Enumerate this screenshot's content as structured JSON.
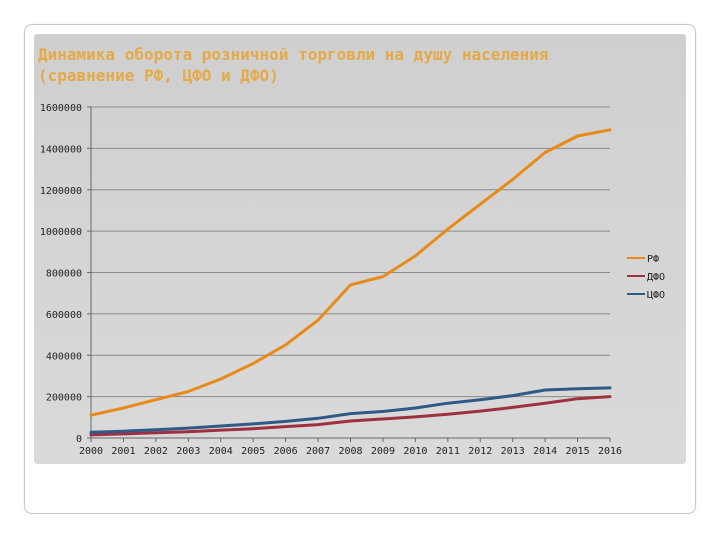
{
  "slide": {
    "title_line1": "Динамика оборота розничной торговли на душу населения",
    "title_line2": "(сравнение РФ, ЦФО и ДФО)"
  },
  "chart_data": {
    "type": "line",
    "x": [
      "2000",
      "2001",
      "2002",
      "2003",
      "2004",
      "2005",
      "2006",
      "2007",
      "2008",
      "2009",
      "2010",
      "2011",
      "2012",
      "2013",
      "2014",
      "2015",
      "2016"
    ],
    "yticks": [
      "0",
      "200000",
      "400000",
      "600000",
      "800000",
      "1000000",
      "1200000",
      "1400000",
      "1600000"
    ],
    "ylim": [
      0,
      1600000
    ],
    "grid": true,
    "legend_position": "right",
    "series": [
      {
        "name": "РФ",
        "color": "#e88a1a",
        "values": [
          110000,
          145000,
          185000,
          225000,
          285000,
          360000,
          450000,
          570000,
          740000,
          780000,
          880000,
          1010000,
          1130000,
          1250000,
          1380000,
          1460000,
          1490000
        ]
      },
      {
        "name": "ДФО",
        "color": "#9e3040",
        "values": [
          15000,
          20000,
          25000,
          30000,
          38000,
          45000,
          55000,
          65000,
          82000,
          92000,
          102000,
          115000,
          130000,
          148000,
          168000,
          190000,
          200000
        ]
      },
      {
        "name": "ЦФО",
        "color": "#2f5a85",
        "values": [
          28000,
          33000,
          40000,
          48000,
          58000,
          68000,
          80000,
          95000,
          118000,
          128000,
          145000,
          168000,
          185000,
          205000,
          232000,
          238000,
          242000
        ]
      }
    ]
  }
}
